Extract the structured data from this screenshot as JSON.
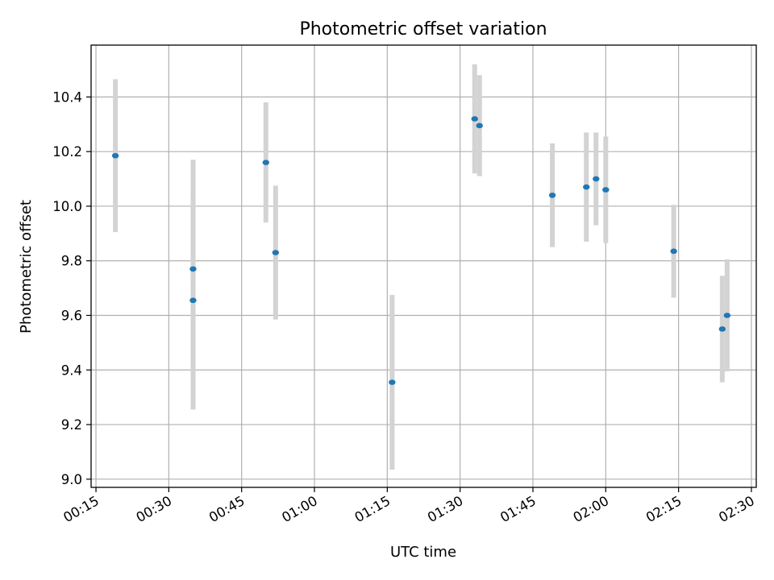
{
  "chart_data": {
    "type": "scatter",
    "title": "Photometric offset variation",
    "xlabel": "UTC time",
    "ylabel": "Photometric offset",
    "grid": true,
    "x_ticks": [
      "00:15",
      "00:30",
      "00:45",
      "01:00",
      "01:15",
      "01:30",
      "01:45",
      "02:00",
      "02:15",
      "02:30"
    ],
    "y_ticks": [
      "9.0",
      "9.2",
      "9.4",
      "9.6",
      "9.8",
      "10.0",
      "10.2",
      "10.4"
    ],
    "xlim": [
      "00:14",
      "02:31"
    ],
    "ylim": [
      8.97,
      10.59
    ],
    "marker_color": "#1f77b4",
    "errorbar_color": "#d3d3d3",
    "points": [
      {
        "x": "00:19",
        "y": 10.185,
        "yerr": 0.28
      },
      {
        "x": "00:35",
        "y": 9.77,
        "yerr": 0.4
      },
      {
        "x": "00:35",
        "y": 9.655,
        "yerr": 0.4
      },
      {
        "x": "00:50",
        "y": 10.16,
        "yerr": 0.22
      },
      {
        "x": "00:52",
        "y": 9.83,
        "yerr": 0.245
      },
      {
        "x": "01:16",
        "y": 9.355,
        "yerr": 0.32
      },
      {
        "x": "01:33",
        "y": 10.32,
        "yerr": 0.2
      },
      {
        "x": "01:34",
        "y": 10.295,
        "yerr": 0.185
      },
      {
        "x": "01:49",
        "y": 10.04,
        "yerr": 0.19
      },
      {
        "x": "01:56",
        "y": 10.07,
        "yerr": 0.2
      },
      {
        "x": "01:58",
        "y": 10.1,
        "yerr": 0.17
      },
      {
        "x": "02:00",
        "y": 10.06,
        "yerr": 0.195
      },
      {
        "x": "02:14",
        "y": 9.835,
        "yerr": 0.17
      },
      {
        "x": "02:24",
        "y": 9.55,
        "yerr": 0.195
      },
      {
        "x": "02:25",
        "y": 9.6,
        "yerr": 0.205
      }
    ]
  }
}
